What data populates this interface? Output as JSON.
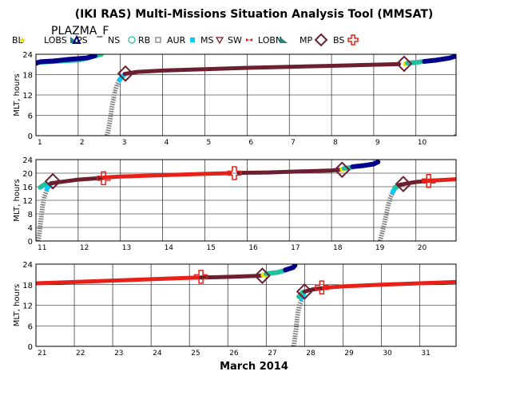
{
  "title": "(IKI RAS) Multi-Missions Situation Analysis Tool (MMSAT)",
  "mission": "PLAZMA_F",
  "x_axis_caption": "March 2014",
  "legend": [
    {
      "label": "BL",
      "symbol": "star",
      "color": "#f2e600"
    },
    {
      "label": "LOBS",
      "symbol": "flag",
      "color": "#2a7f7b"
    },
    {
      "label": "PS",
      "symbol": "triangle",
      "color": "#00008b"
    },
    {
      "label": "NS",
      "symbol": "circle",
      "color": "#20c0a0"
    },
    {
      "label": "RB",
      "symbol": "square",
      "color": "#808080"
    },
    {
      "label": "AUR",
      "symbol": "dot",
      "color": "#00ccff"
    },
    {
      "label": "MS",
      "symbol": "tri-down",
      "color": "#7b1f2f"
    },
    {
      "label": "SW",
      "symbol": "bowtie",
      "color": "#e8201a"
    },
    {
      "label": "LOBN",
      "symbol": "flag",
      "color": "#2a7f7b"
    },
    {
      "label": "MP",
      "symbol": "diamond",
      "color": "#6b1f2f"
    },
    {
      "label": "BS",
      "symbol": "cross",
      "color": "#e8201a"
    }
  ],
  "region_colors": {
    "SW": "#e8201a",
    "MS": "#6b1f2f",
    "LOBN": "#2a7f7b",
    "PS": "#00008b",
    "NS": "#20c0a0",
    "AUR": "#00ccff",
    "RB": "#808080",
    "BL": "#f2e600",
    "MP": "#6b1f2f",
    "BS": "#e8201a"
  },
  "chart_data": [
    {
      "type": "scatter",
      "ylabel": "MLT, hours",
      "xlim": [
        1,
        10.95
      ],
      "ylim": [
        0,
        24
      ],
      "x_ticks": [
        1,
        2,
        3,
        4,
        5,
        6,
        7,
        8,
        9,
        10
      ],
      "y_ticks": [
        0,
        6,
        12,
        18,
        24
      ],
      "segments": [
        {
          "region": "NS",
          "points": [
            [
              1.0,
              21.6
            ],
            [
              1.6,
              22.0
            ],
            [
              2.0,
              22.3
            ],
            [
              2.2,
              22.8
            ],
            [
              2.4,
              23.5
            ],
            [
              2.55,
              24.0
            ]
          ]
        },
        {
          "region": "PS",
          "points": [
            [
              1.0,
              21.3
            ],
            [
              1.1,
              21.8
            ],
            [
              1.4,
              22.0
            ],
            [
              1.7,
              22.4
            ],
            [
              2.2,
              22.9
            ],
            [
              2.4,
              23.6
            ]
          ]
        },
        {
          "region": "RB",
          "points": [
            [
              2.68,
              0.0
            ],
            [
              2.71,
              1.5
            ],
            [
              2.74,
              3.5
            ],
            [
              2.77,
              6.0
            ],
            [
              2.8,
              8.5
            ],
            [
              2.84,
              11.0
            ],
            [
              2.87,
              13.0
            ],
            [
              2.92,
              15.0
            ],
            [
              2.98,
              16.4
            ]
          ]
        },
        {
          "region": "AUR",
          "points": [
            [
              2.98,
              16.5
            ],
            [
              3.03,
              17.2
            ],
            [
              3.08,
              17.8
            ]
          ]
        },
        {
          "region": "MS",
          "points": [
            [
              3.1,
              18.2
            ],
            [
              3.4,
              18.8
            ],
            [
              4.0,
              19.2
            ],
            [
              5.0,
              19.6
            ],
            [
              6.0,
              20.0
            ],
            [
              7.0,
              20.3
            ],
            [
              8.0,
              20.6
            ],
            [
              9.0,
              20.9
            ],
            [
              9.6,
              21.1
            ]
          ]
        },
        {
          "region": "BL",
          "points": [
            [
              9.75,
              21.2
            ],
            [
              9.8,
              21.4
            ]
          ]
        },
        {
          "region": "NS",
          "points": [
            [
              9.8,
              21.4
            ],
            [
              10.0,
              21.6
            ],
            [
              10.2,
              21.9
            ]
          ]
        },
        {
          "region": "PS",
          "points": [
            [
              10.2,
              21.9
            ],
            [
              10.5,
              22.3
            ],
            [
              10.8,
              22.9
            ],
            [
              10.95,
              23.5
            ]
          ]
        },
        {
          "region": "RB",
          "points": [
            [
              10.95,
              0.0
            ],
            [
              10.95,
              0.8
            ]
          ]
        }
      ],
      "markers": [
        {
          "type": "MP",
          "x": 3.12,
          "y": 18.3
        },
        {
          "type": "MP",
          "x": 9.72,
          "y": 21.2
        }
      ]
    },
    {
      "type": "scatter",
      "ylabel": "MLT, hours",
      "xlim": [
        11,
        20.95
      ],
      "ylim": [
        0,
        24
      ],
      "x_ticks": [
        11,
        12,
        13,
        14,
        15,
        16,
        17,
        18,
        19,
        20
      ],
      "y_ticks": [
        0,
        4,
        8,
        12,
        16,
        20,
        24
      ],
      "segments": [
        {
          "region": "RB",
          "points": [
            [
              11.05,
              0.0
            ],
            [
              11.08,
              2.0
            ],
            [
              11.1,
              4.5
            ],
            [
              11.13,
              7.5
            ],
            [
              11.16,
              10.5
            ],
            [
              11.2,
              13.0
            ],
            [
              11.26,
              15.2
            ]
          ]
        },
        {
          "region": "AUR",
          "points": [
            [
              11.26,
              15.4
            ],
            [
              11.3,
              16.2
            ],
            [
              11.34,
              16.8
            ]
          ]
        },
        {
          "region": "NS",
          "points": [
            [
              11.1,
              15.8
            ],
            [
              11.22,
              16.8
            ]
          ]
        },
        {
          "region": "MS",
          "points": [
            [
              11.35,
              17.0
            ],
            [
              11.7,
              17.6
            ],
            [
              12.0,
              18.1
            ],
            [
              12.6,
              18.6
            ]
          ]
        },
        {
          "region": "SW",
          "points": [
            [
              12.6,
              18.7
            ],
            [
              13.0,
              19.0
            ],
            [
              14.0,
              19.4
            ],
            [
              15.0,
              19.8
            ],
            [
              15.6,
              20.0
            ]
          ]
        },
        {
          "region": "MS",
          "points": [
            [
              15.8,
              20.1
            ],
            [
              16.5,
              20.2
            ],
            [
              17.0,
              20.4
            ],
            [
              17.5,
              20.6
            ],
            [
              18.0,
              20.8
            ],
            [
              18.2,
              21.0
            ]
          ]
        },
        {
          "region": "BL",
          "points": [
            [
              18.25,
              21.1
            ],
            [
              18.3,
              21.3
            ]
          ]
        },
        {
          "region": "NS",
          "points": [
            [
              18.3,
              21.4
            ],
            [
              18.5,
              21.8
            ]
          ]
        },
        {
          "region": "PS",
          "points": [
            [
              18.5,
              21.9
            ],
            [
              18.8,
              22.3
            ],
            [
              19.0,
              22.7
            ],
            [
              19.1,
              23.3
            ]
          ]
        },
        {
          "region": "RB",
          "points": [
            [
              19.15,
              0.0
            ],
            [
              19.2,
              2.5
            ],
            [
              19.25,
              5.0
            ],
            [
              19.3,
              8.0
            ],
            [
              19.35,
              11.0
            ],
            [
              19.4,
              13.0
            ],
            [
              19.45,
              14.2
            ]
          ]
        },
        {
          "region": "AUR",
          "points": [
            [
              19.45,
              14.5
            ],
            [
              19.5,
              15.5
            ],
            [
              19.55,
              16.0
            ]
          ]
        },
        {
          "region": "NS",
          "points": [
            [
              19.5,
              15.8
            ],
            [
              19.6,
              16.3
            ]
          ]
        },
        {
          "region": "MS",
          "points": [
            [
              19.6,
              16.5
            ],
            [
              19.8,
              17.0
            ],
            [
              20.0,
              17.4
            ],
            [
              20.2,
              17.6
            ]
          ]
        },
        {
          "region": "SW",
          "points": [
            [
              20.2,
              17.7
            ],
            [
              20.5,
              17.9
            ],
            [
              20.95,
              18.2
            ]
          ]
        }
      ],
      "markers": [
        {
          "type": "MP",
          "x": 11.4,
          "y": 17.6
        },
        {
          "type": "BS",
          "x": 12.6,
          "y": 18.5
        },
        {
          "type": "BS",
          "x": 15.7,
          "y": 20.0
        },
        {
          "type": "MP",
          "x": 18.25,
          "y": 21.0
        },
        {
          "type": "MP",
          "x": 19.7,
          "y": 16.8
        },
        {
          "type": "BS",
          "x": 20.3,
          "y": 17.7
        }
      ]
    },
    {
      "type": "scatter",
      "ylabel": "MLT, hours",
      "xlim": [
        21,
        31.95
      ],
      "ylim": [
        0,
        24
      ],
      "x_ticks": [
        21,
        22,
        23,
        24,
        25,
        26,
        27,
        28,
        29,
        30,
        31
      ],
      "y_ticks": [
        0,
        6,
        12,
        18,
        24
      ],
      "segments": [
        {
          "region": "SW",
          "points": [
            [
              21.0,
              18.4
            ],
            [
              22.0,
              18.8
            ],
            [
              23.0,
              19.2
            ],
            [
              24.0,
              19.6
            ],
            [
              25.0,
              20.0
            ],
            [
              25.3,
              20.1
            ]
          ]
        },
        {
          "region": "MS",
          "points": [
            [
              25.3,
              20.1
            ],
            [
              25.8,
              20.2
            ],
            [
              26.3,
              20.4
            ],
            [
              26.8,
              20.6
            ],
            [
              26.9,
              20.7
            ]
          ]
        },
        {
          "region": "BL",
          "points": [
            [
              26.92,
              20.8
            ],
            [
              27.0,
              21.0
            ]
          ]
        },
        {
          "region": "NS",
          "points": [
            [
              27.0,
              21.2
            ],
            [
              27.3,
              21.6
            ],
            [
              27.5,
              22.2
            ]
          ]
        },
        {
          "region": "PS",
          "points": [
            [
              27.5,
              22.3
            ],
            [
              27.7,
              23.0
            ],
            [
              27.75,
              23.6
            ]
          ]
        },
        {
          "region": "RB",
          "points": [
            [
              27.72,
              0.0
            ],
            [
              27.75,
              2.5
            ],
            [
              27.78,
              5.0
            ],
            [
              27.8,
              7.5
            ],
            [
              27.83,
              10.0
            ],
            [
              27.87,
              12.0
            ],
            [
              27.92,
              13.5
            ]
          ]
        },
        {
          "region": "AUR",
          "points": [
            [
              27.92,
              14.0
            ],
            [
              27.98,
              15.2
            ]
          ]
        },
        {
          "region": "NS",
          "points": [
            [
              27.85,
              14.5
            ],
            [
              27.95,
              15.8
            ]
          ]
        },
        {
          "region": "MS",
          "points": [
            [
              28.0,
              16.0
            ],
            [
              28.2,
              16.6
            ],
            [
              28.5,
              17.0
            ]
          ]
        },
        {
          "region": "SW",
          "points": [
            [
              28.5,
              17.1
            ],
            [
              29.0,
              17.5
            ],
            [
              30.0,
              18.0
            ],
            [
              31.0,
              18.4
            ],
            [
              31.95,
              18.8
            ]
          ]
        }
      ],
      "markers": [
        {
          "type": "BS",
          "x": 25.3,
          "y": 20.3
        },
        {
          "type": "MP",
          "x": 26.9,
          "y": 20.6
        },
        {
          "type": "MP",
          "x": 28.0,
          "y": 16.0
        },
        {
          "type": "BS",
          "x": 28.45,
          "y": 17.2
        }
      ]
    }
  ]
}
